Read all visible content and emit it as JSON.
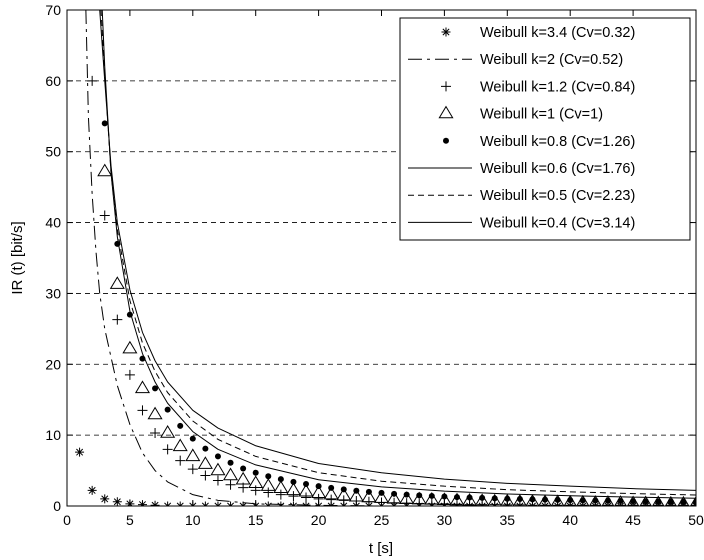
{
  "chart_data": {
    "type": "line",
    "title": "",
    "xlabel": "t [s]",
    "ylabel": "IR (t) [bit/s]",
    "xlim": [
      0,
      50
    ],
    "ylim": [
      0,
      70
    ],
    "xticks": [
      "0",
      "5",
      "10",
      "15",
      "20",
      "25",
      "30",
      "35",
      "40",
      "45",
      "50"
    ],
    "yticks": [
      "0",
      "10",
      "20",
      "30",
      "40",
      "50",
      "60",
      "70"
    ],
    "grid": "horizontal dashed",
    "legend_position": "top-right",
    "series": [
      {
        "name": "Weibull k=3.4 (Cv=0.32)",
        "marker": "asterisk",
        "x": [
          1,
          2,
          3,
          4,
          5,
          6,
          7,
          8,
          9,
          10,
          11,
          12,
          13,
          14,
          15,
          16,
          17,
          18,
          19,
          20,
          21,
          22,
          23,
          24,
          25,
          26,
          27,
          28,
          29,
          30,
          31,
          32,
          33,
          34,
          35,
          36,
          37,
          38,
          39,
          40,
          41,
          42,
          43,
          44,
          45,
          46,
          47,
          48,
          49,
          50
        ],
        "y": [
          7.6,
          2.2,
          1.0,
          0.6,
          0.3,
          0.2,
          0.1,
          0,
          0,
          0,
          0,
          0,
          0,
          0,
          0,
          0,
          0,
          0,
          0,
          0,
          0,
          0,
          0,
          0,
          0,
          0,
          0,
          0,
          0,
          0,
          0,
          0,
          0,
          0,
          0,
          0,
          0,
          0,
          0,
          0,
          0,
          0,
          0,
          0,
          0,
          0,
          0,
          0,
          0,
          0
        ]
      },
      {
        "name": "Weibull k=2 (Cv=0.52)",
        "style": "long-dash",
        "x": [
          1.5,
          1.7,
          2,
          2.3,
          2.6,
          3,
          3.5,
          4,
          5,
          6,
          7,
          8,
          10,
          12,
          15,
          20,
          25,
          30,
          40,
          50
        ],
        "y": [
          70,
          55,
          44,
          36,
          30,
          25,
          21,
          17,
          11.5,
          7.5,
          5,
          3.4,
          1.6,
          0.8,
          0.3,
          0.1,
          0,
          0,
          0,
          0
        ]
      },
      {
        "name": "Weibull k=1.2 (Cv=0.84)",
        "marker": "plus",
        "x": [
          2,
          3,
          4,
          5,
          6,
          7,
          8,
          9,
          10,
          11,
          12,
          13,
          14,
          15,
          16,
          17,
          18,
          19,
          20,
          21,
          22,
          23,
          24,
          25,
          26,
          27,
          28,
          29,
          30,
          31,
          32,
          33,
          34,
          35,
          36,
          37,
          38,
          39,
          40,
          41,
          42,
          43,
          44,
          45,
          46,
          47,
          48,
          49,
          50
        ],
        "y": [
          60,
          41,
          26.3,
          18.5,
          13.5,
          10.3,
          8.0,
          6.4,
          5.2,
          4.3,
          3.6,
          3.0,
          2.6,
          2.2,
          1.9,
          1.6,
          1.4,
          1.2,
          1.0,
          0.9,
          0.8,
          0.7,
          0.6,
          0.5,
          0.45,
          0.4,
          0.35,
          0.3,
          0.3,
          0.25,
          0.2,
          0.2,
          0.2,
          0.15,
          0.15,
          0.1,
          0.1,
          0.1,
          0.1,
          0.1,
          0.1,
          0.1,
          0.1,
          0.1,
          0.1,
          0.1,
          0.1,
          0.1,
          0.1
        ]
      },
      {
        "name": "Weibull k=1 (Cv=1)",
        "marker": "triangle",
        "x": [
          3,
          4,
          5,
          6,
          7,
          8,
          9,
          10,
          11,
          12,
          13,
          14,
          15,
          16,
          17,
          18,
          19,
          20,
          21,
          22,
          23,
          24,
          25,
          26,
          27,
          28,
          29,
          30,
          31,
          32,
          33,
          34,
          35,
          36,
          37,
          38,
          39,
          40,
          41,
          42,
          43,
          44,
          45,
          46,
          47,
          48,
          49,
          50
        ],
        "y": [
          47.2,
          31.3,
          22.2,
          16.6,
          12.9,
          10.3,
          8.4,
          7.0,
          5.9,
          5.0,
          4.3,
          3.7,
          3.2,
          2.8,
          2.5,
          2.2,
          2.0,
          1.8,
          1.6,
          1.45,
          1.3,
          1.2,
          1.1,
          1.0,
          0.95,
          0.9,
          0.85,
          0.8,
          0.75,
          0.7,
          0.65,
          0.6,
          0.6,
          0.55,
          0.55,
          0.5,
          0.5,
          0.45,
          0.45,
          0.4,
          0.4,
          0.4,
          0.35,
          0.35,
          0.35,
          0.3,
          0.3,
          0.3
        ]
      },
      {
        "name": "Weibull k=0.8 (Cv=1.26)",
        "marker": "dot",
        "x": [
          3,
          4,
          5,
          6,
          7,
          8,
          9,
          10,
          11,
          12,
          13,
          14,
          15,
          16,
          17,
          18,
          19,
          20,
          21,
          22,
          23,
          24,
          25,
          26,
          27,
          28,
          29,
          30,
          31,
          32,
          33,
          34,
          35,
          36,
          37,
          38,
          39,
          40,
          41,
          42,
          43,
          44,
          45,
          46,
          47,
          48,
          49,
          50
        ],
        "y": [
          54,
          37,
          27,
          20.8,
          16.6,
          13.6,
          11.3,
          9.5,
          8.1,
          7.0,
          6.1,
          5.3,
          4.7,
          4.2,
          3.8,
          3.4,
          3.1,
          2.8,
          2.55,
          2.35,
          2.15,
          2.0,
          1.85,
          1.72,
          1.6,
          1.5,
          1.42,
          1.34,
          1.26,
          1.2,
          1.14,
          1.08,
          1.03,
          0.98,
          0.94,
          0.9,
          0.86,
          0.83,
          0.8,
          0.77,
          0.74,
          0.71,
          0.69,
          0.67,
          0.65,
          0.63,
          0.61,
          0.59
        ]
      },
      {
        "name": "Weibull k=0.6 (Cv=1.76)",
        "style": "solid",
        "x": [
          2.8,
          3,
          3.5,
          4,
          5,
          6,
          7,
          8,
          10,
          12,
          15,
          20,
          25,
          30,
          35,
          40,
          45,
          50
        ],
        "y": [
          70,
          62,
          47,
          38,
          27.5,
          21.5,
          17.5,
          14.5,
          10.5,
          8.0,
          5.8,
          3.7,
          2.7,
          2.1,
          1.7,
          1.45,
          1.25,
          1.1
        ]
      },
      {
        "name": "Weibull k=0.5 (Cv=2.23)",
        "style": "short-dash",
        "x": [
          2.7,
          3,
          3.5,
          4,
          5,
          6,
          7,
          8,
          10,
          12,
          15,
          20,
          25,
          30,
          35,
          40,
          45,
          50
        ],
        "y": [
          70,
          61,
          47,
          39,
          29,
          23,
          19,
          16,
          12,
          9.4,
          7.0,
          4.7,
          3.5,
          2.8,
          2.3,
          2.0,
          1.75,
          1.55
        ]
      },
      {
        "name": "Weibull k=0.4 (Cv=3.14)",
        "style": "solid",
        "x": [
          2.6,
          3,
          3.5,
          4,
          5,
          6,
          7,
          8,
          10,
          12,
          15,
          20,
          25,
          30,
          35,
          40,
          45,
          50
        ],
        "y": [
          70,
          60,
          48,
          40,
          30.5,
          24.5,
          20.5,
          17.5,
          13.5,
          11,
          8.5,
          6.0,
          4.7,
          3.8,
          3.2,
          2.8,
          2.45,
          2.2
        ]
      }
    ]
  }
}
